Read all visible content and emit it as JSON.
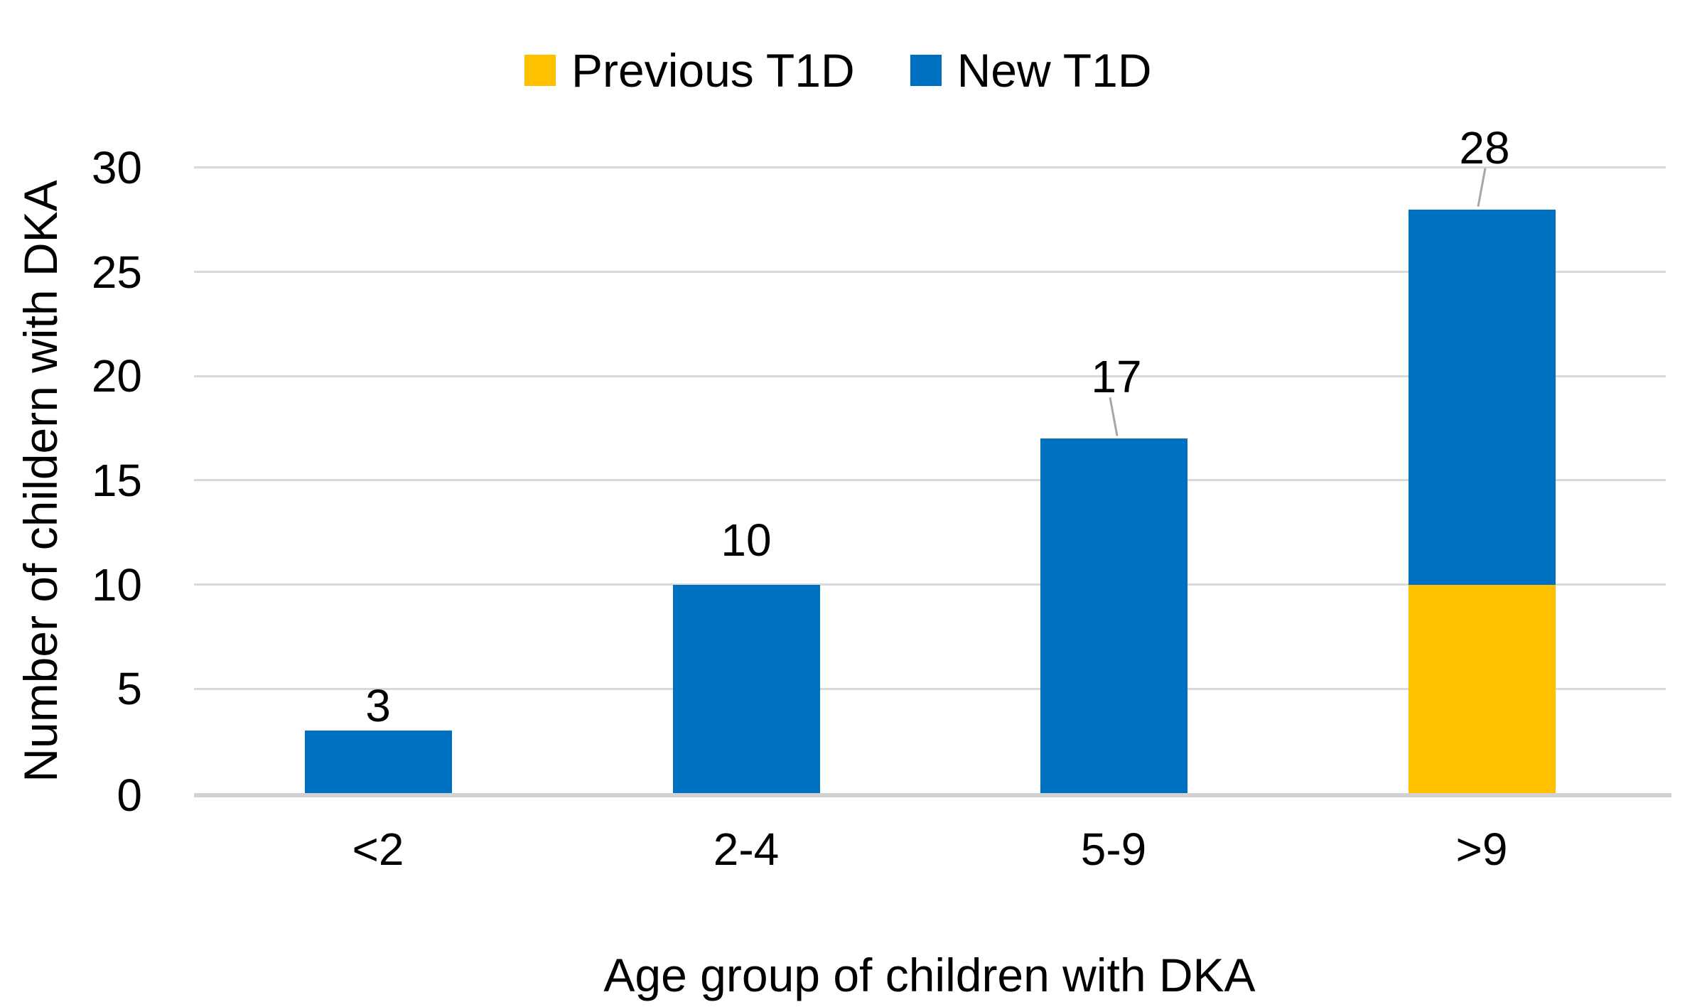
{
  "chart_data": {
    "type": "bar",
    "stacked": true,
    "title": "",
    "categories": [
      "<2",
      "2-4",
      "5-9",
      ">9"
    ],
    "series": [
      {
        "name": "Previous T1D",
        "color": "#FFC000",
        "values": [
          0,
          0,
          0,
          10
        ]
      },
      {
        "name": "New T1D",
        "color": "#0070C0",
        "values": [
          3,
          10,
          17,
          18
        ]
      }
    ],
    "bar_total_labels": [
      "3",
      "10",
      "17",
      "28"
    ],
    "xlabel": "Age group of children with DKA",
    "ylabel": "Number of childern with DKA",
    "ylim": [
      0,
      30
    ],
    "yticks": [
      0,
      5,
      10,
      15,
      20,
      25,
      30
    ],
    "legend_position": "top",
    "grid": true,
    "colors": {
      "gridline": "#D9D9D9",
      "axis_line": "#D2D2D2",
      "leader_line": "#A6A6A6",
      "text": "#000000",
      "background": "#FFFFFF"
    },
    "label_layout": {
      "gaps": [
        10,
        38,
        62,
        62
      ],
      "leader": [
        false,
        false,
        true,
        true
      ],
      "leader_dx": [
        0,
        0,
        5,
        -5
      ]
    }
  }
}
